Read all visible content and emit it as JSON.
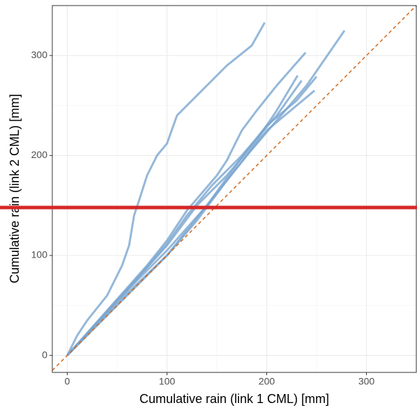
{
  "chart_data": {
    "type": "line",
    "x_label": "Cumulative rain (link 1 CML) [mm]",
    "y_label": "Cumulative rain (link 2 CML) [mm]",
    "xlim": [
      -15,
      350
    ],
    "ylim": [
      -17,
      350
    ],
    "xticks": [
      0,
      100,
      200,
      300
    ],
    "yticks": [
      0,
      100,
      200,
      300
    ],
    "grid": true,
    "reference_line": {
      "slope": 1,
      "intercept": 0,
      "color": "#d2691e",
      "dashed": true
    },
    "hline": {
      "value": 148,
      "color": "#d62728"
    },
    "series": [
      {
        "color": "#7aa6cf",
        "x": [
          0,
          10,
          20,
          40,
          55,
          62,
          67,
          72,
          80,
          90,
          100,
          110,
          120,
          140,
          160,
          185,
          198
        ],
        "values": [
          0,
          20,
          35,
          60,
          90,
          110,
          140,
          155,
          180,
          200,
          212,
          240,
          250,
          270,
          290,
          310,
          333
        ]
      },
      {
        "color": "#7aa6cf",
        "x": [
          0,
          40,
          80,
          100,
          120,
          150,
          160,
          170,
          175,
          190,
          210,
          239
        ],
        "values": [
          0,
          45,
          90,
          115,
          145,
          180,
          195,
          215,
          225,
          245,
          270,
          303
        ]
      },
      {
        "color": "#7aa6cf",
        "x": [
          0,
          50,
          100,
          140,
          180,
          210,
          240,
          278
        ],
        "values": [
          0,
          55,
          105,
          150,
          200,
          235,
          270,
          325
        ]
      },
      {
        "color": "#7aa6cf",
        "x": [
          0,
          50,
          100,
          130,
          160,
          190,
          210,
          231
        ],
        "values": [
          0,
          55,
          110,
          150,
          180,
          215,
          245,
          280
        ]
      },
      {
        "color": "#7aa6cf",
        "x": [
          0,
          60,
          100,
          140,
          180,
          200,
          230,
          250
        ],
        "values": [
          0,
          62,
          100,
          150,
          205,
          230,
          255,
          279
        ]
      },
      {
        "color": "#7aa6cf",
        "x": [
          0,
          60,
          100,
          120,
          145,
          175,
          210,
          235
        ],
        "values": [
          0,
          65,
          112,
          140,
          170,
          200,
          240,
          275
        ]
      },
      {
        "color": "#7aa6cf",
        "x": [
          0,
          50,
          100,
          130,
          160,
          200,
          248
        ],
        "values": [
          0,
          50,
          100,
          135,
          175,
          225,
          265
        ]
      }
    ]
  }
}
